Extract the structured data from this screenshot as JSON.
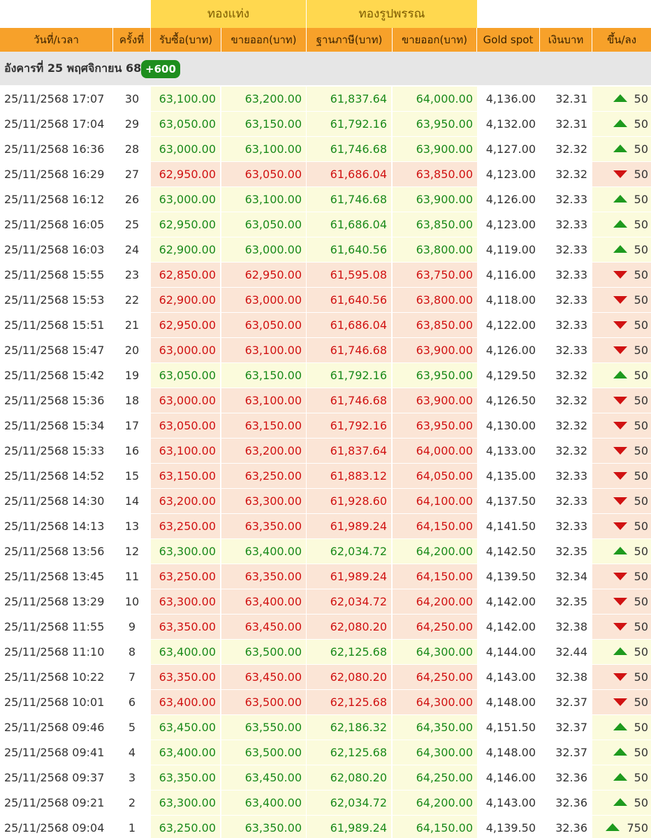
{
  "groups": {
    "bar": "ทองแท่ง",
    "jewelry": "ทองรูปพรรณ"
  },
  "headers": {
    "time": "วันที่/เวลา",
    "no": "ครั้งที่",
    "bar_buy": "รับซื้อ(บาท)",
    "bar_sell": "ขายออก(บาท)",
    "jew_base": "ฐานภาษี(บาท)",
    "jew_sell": "ขายออก(บาท)",
    "spot": "Gold spot",
    "thb": "เงินบาท",
    "change": "ขึ้น/ลง"
  },
  "date_group": {
    "label": "อังคารที่ 25 พฤศจิกายน 68",
    "badge": "+600"
  },
  "colors": {
    "up": "#1a8a1a",
    "down": "#d01212",
    "header": "#f7a12a",
    "group": "#ffd84f"
  },
  "rows": [
    {
      "time": "25/11/2568 17:07",
      "no": "30",
      "bar_buy": "63,100.00",
      "bar_sell": "63,200.00",
      "jew_base": "61,837.64",
      "jew_sell": "64,000.00",
      "spot": "4,136.00",
      "thb": "32.31",
      "dir": "up",
      "change": "50"
    },
    {
      "time": "25/11/2568 17:04",
      "no": "29",
      "bar_buy": "63,050.00",
      "bar_sell": "63,150.00",
      "jew_base": "61,792.16",
      "jew_sell": "63,950.00",
      "spot": "4,132.00",
      "thb": "32.31",
      "dir": "up",
      "change": "50"
    },
    {
      "time": "25/11/2568 16:36",
      "no": "28",
      "bar_buy": "63,000.00",
      "bar_sell": "63,100.00",
      "jew_base": "61,746.68",
      "jew_sell": "63,900.00",
      "spot": "4,127.00",
      "thb": "32.32",
      "dir": "up",
      "change": "50"
    },
    {
      "time": "25/11/2568 16:29",
      "no": "27",
      "bar_buy": "62,950.00",
      "bar_sell": "63,050.00",
      "jew_base": "61,686.04",
      "jew_sell": "63,850.00",
      "spot": "4,123.00",
      "thb": "32.32",
      "dir": "down",
      "change": "50"
    },
    {
      "time": "25/11/2568 16:12",
      "no": "26",
      "bar_buy": "63,000.00",
      "bar_sell": "63,100.00",
      "jew_base": "61,746.68",
      "jew_sell": "63,900.00",
      "spot": "4,126.00",
      "thb": "32.33",
      "dir": "up",
      "change": "50"
    },
    {
      "time": "25/11/2568 16:05",
      "no": "25",
      "bar_buy": "62,950.00",
      "bar_sell": "63,050.00",
      "jew_base": "61,686.04",
      "jew_sell": "63,850.00",
      "spot": "4,123.00",
      "thb": "32.33",
      "dir": "up",
      "change": "50"
    },
    {
      "time": "25/11/2568 16:03",
      "no": "24",
      "bar_buy": "62,900.00",
      "bar_sell": "63,000.00",
      "jew_base": "61,640.56",
      "jew_sell": "63,800.00",
      "spot": "4,119.00",
      "thb": "32.33",
      "dir": "up",
      "change": "50"
    },
    {
      "time": "25/11/2568 15:55",
      "no": "23",
      "bar_buy": "62,850.00",
      "bar_sell": "62,950.00",
      "jew_base": "61,595.08",
      "jew_sell": "63,750.00",
      "spot": "4,116.00",
      "thb": "32.33",
      "dir": "down",
      "change": "50"
    },
    {
      "time": "25/11/2568 15:53",
      "no": "22",
      "bar_buy": "62,900.00",
      "bar_sell": "63,000.00",
      "jew_base": "61,640.56",
      "jew_sell": "63,800.00",
      "spot": "4,118.00",
      "thb": "32.33",
      "dir": "down",
      "change": "50"
    },
    {
      "time": "25/11/2568 15:51",
      "no": "21",
      "bar_buy": "62,950.00",
      "bar_sell": "63,050.00",
      "jew_base": "61,686.04",
      "jew_sell": "63,850.00",
      "spot": "4,122.00",
      "thb": "32.33",
      "dir": "down",
      "change": "50"
    },
    {
      "time": "25/11/2568 15:47",
      "no": "20",
      "bar_buy": "63,000.00",
      "bar_sell": "63,100.00",
      "jew_base": "61,746.68",
      "jew_sell": "63,900.00",
      "spot": "4,126.00",
      "thb": "32.33",
      "dir": "down",
      "change": "50"
    },
    {
      "time": "25/11/2568 15:42",
      "no": "19",
      "bar_buy": "63,050.00",
      "bar_sell": "63,150.00",
      "jew_base": "61,792.16",
      "jew_sell": "63,950.00",
      "spot": "4,129.50",
      "thb": "32.32",
      "dir": "up",
      "change": "50"
    },
    {
      "time": "25/11/2568 15:36",
      "no": "18",
      "bar_buy": "63,000.00",
      "bar_sell": "63,100.00",
      "jew_base": "61,746.68",
      "jew_sell": "63,900.00",
      "spot": "4,126.50",
      "thb": "32.32",
      "dir": "down",
      "change": "50"
    },
    {
      "time": "25/11/2568 15:34",
      "no": "17",
      "bar_buy": "63,050.00",
      "bar_sell": "63,150.00",
      "jew_base": "61,792.16",
      "jew_sell": "63,950.00",
      "spot": "4,130.00",
      "thb": "32.32",
      "dir": "down",
      "change": "50"
    },
    {
      "time": "25/11/2568 15:33",
      "no": "16",
      "bar_buy": "63,100.00",
      "bar_sell": "63,200.00",
      "jew_base": "61,837.64",
      "jew_sell": "64,000.00",
      "spot": "4,133.00",
      "thb": "32.32",
      "dir": "down",
      "change": "50"
    },
    {
      "time": "25/11/2568 14:52",
      "no": "15",
      "bar_buy": "63,150.00",
      "bar_sell": "63,250.00",
      "jew_base": "61,883.12",
      "jew_sell": "64,050.00",
      "spot": "4,135.00",
      "thb": "32.33",
      "dir": "down",
      "change": "50"
    },
    {
      "time": "25/11/2568 14:30",
      "no": "14",
      "bar_buy": "63,200.00",
      "bar_sell": "63,300.00",
      "jew_base": "61,928.60",
      "jew_sell": "64,100.00",
      "spot": "4,137.50",
      "thb": "32.33",
      "dir": "down",
      "change": "50"
    },
    {
      "time": "25/11/2568 14:13",
      "no": "13",
      "bar_buy": "63,250.00",
      "bar_sell": "63,350.00",
      "jew_base": "61,989.24",
      "jew_sell": "64,150.00",
      "spot": "4,141.50",
      "thb": "32.33",
      "dir": "down",
      "change": "50"
    },
    {
      "time": "25/11/2568 13:56",
      "no": "12",
      "bar_buy": "63,300.00",
      "bar_sell": "63,400.00",
      "jew_base": "62,034.72",
      "jew_sell": "64,200.00",
      "spot": "4,142.50",
      "thb": "32.35",
      "dir": "up",
      "change": "50"
    },
    {
      "time": "25/11/2568 13:45",
      "no": "11",
      "bar_buy": "63,250.00",
      "bar_sell": "63,350.00",
      "jew_base": "61,989.24",
      "jew_sell": "64,150.00",
      "spot": "4,139.50",
      "thb": "32.34",
      "dir": "down",
      "change": "50"
    },
    {
      "time": "25/11/2568 13:29",
      "no": "10",
      "bar_buy": "63,300.00",
      "bar_sell": "63,400.00",
      "jew_base": "62,034.72",
      "jew_sell": "64,200.00",
      "spot": "4,142.00",
      "thb": "32.35",
      "dir": "down",
      "change": "50"
    },
    {
      "time": "25/11/2568 11:55",
      "no": "9",
      "bar_buy": "63,350.00",
      "bar_sell": "63,450.00",
      "jew_base": "62,080.20",
      "jew_sell": "64,250.00",
      "spot": "4,142.00",
      "thb": "32.38",
      "dir": "down",
      "change": "50"
    },
    {
      "time": "25/11/2568 11:10",
      "no": "8",
      "bar_buy": "63,400.00",
      "bar_sell": "63,500.00",
      "jew_base": "62,125.68",
      "jew_sell": "64,300.00",
      "spot": "4,144.00",
      "thb": "32.44",
      "dir": "up",
      "change": "50"
    },
    {
      "time": "25/11/2568 10:22",
      "no": "7",
      "bar_buy": "63,350.00",
      "bar_sell": "63,450.00",
      "jew_base": "62,080.20",
      "jew_sell": "64,250.00",
      "spot": "4,143.00",
      "thb": "32.38",
      "dir": "down",
      "change": "50"
    },
    {
      "time": "25/11/2568 10:01",
      "no": "6",
      "bar_buy": "63,400.00",
      "bar_sell": "63,500.00",
      "jew_base": "62,125.68",
      "jew_sell": "64,300.00",
      "spot": "4,148.00",
      "thb": "32.37",
      "dir": "down",
      "change": "50"
    },
    {
      "time": "25/11/2568 09:46",
      "no": "5",
      "bar_buy": "63,450.00",
      "bar_sell": "63,550.00",
      "jew_base": "62,186.32",
      "jew_sell": "64,350.00",
      "spot": "4,151.50",
      "thb": "32.37",
      "dir": "up",
      "change": "50"
    },
    {
      "time": "25/11/2568 09:41",
      "no": "4",
      "bar_buy": "63,400.00",
      "bar_sell": "63,500.00",
      "jew_base": "62,125.68",
      "jew_sell": "64,300.00",
      "spot": "4,148.00",
      "thb": "32.37",
      "dir": "up",
      "change": "50"
    },
    {
      "time": "25/11/2568 09:37",
      "no": "3",
      "bar_buy": "63,350.00",
      "bar_sell": "63,450.00",
      "jew_base": "62,080.20",
      "jew_sell": "64,250.00",
      "spot": "4,146.00",
      "thb": "32.36",
      "dir": "up",
      "change": "50"
    },
    {
      "time": "25/11/2568 09:21",
      "no": "2",
      "bar_buy": "63,300.00",
      "bar_sell": "63,400.00",
      "jew_base": "62,034.72",
      "jew_sell": "64,200.00",
      "spot": "4,143.00",
      "thb": "32.36",
      "dir": "up",
      "change": "50"
    },
    {
      "time": "25/11/2568 09:04",
      "no": "1",
      "bar_buy": "63,250.00",
      "bar_sell": "63,350.00",
      "jew_base": "61,989.24",
      "jew_sell": "64,150.00",
      "spot": "4,139.50",
      "thb": "32.36",
      "dir": "up",
      "change": "750"
    }
  ]
}
